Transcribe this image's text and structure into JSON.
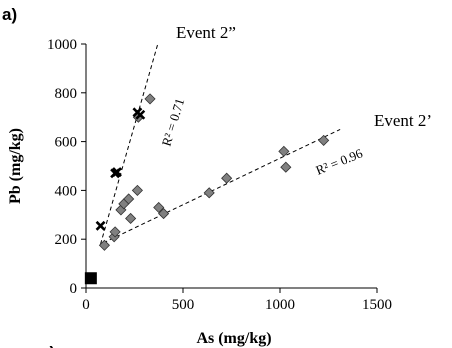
{
  "chart_data": {
    "type": "scatter",
    "panel_label": "a)",
    "next_panel_label_partial": "c)",
    "xlabel": "As (mg/kg)",
    "ylabel": "Pb (mg/kg)",
    "xlim": [
      0,
      1500
    ],
    "ylim": [
      0,
      1000
    ],
    "x_ticks": [
      0,
      500,
      1000,
      1500
    ],
    "y_ticks": [
      0,
      200,
      400,
      600,
      800,
      1000
    ],
    "grid": false,
    "series": [
      {
        "marker": "diamond",
        "color": "#808080",
        "points": [
          {
            "x": 95,
            "y": 175
          },
          {
            "x": 145,
            "y": 210
          },
          {
            "x": 150,
            "y": 230
          },
          {
            "x": 180,
            "y": 320
          },
          {
            "x": 195,
            "y": 345
          },
          {
            "x": 220,
            "y": 365
          },
          {
            "x": 230,
            "y": 285
          },
          {
            "x": 265,
            "y": 400
          },
          {
            "x": 270,
            "y": 700
          },
          {
            "x": 330,
            "y": 775
          },
          {
            "x": 375,
            "y": 330
          },
          {
            "x": 400,
            "y": 305
          },
          {
            "x": 635,
            "y": 390
          },
          {
            "x": 725,
            "y": 450
          },
          {
            "x": 1020,
            "y": 560
          },
          {
            "x": 1030,
            "y": 495
          },
          {
            "x": 1225,
            "y": 605
          }
        ]
      },
      {
        "marker": "x",
        "color": "#000000",
        "points": [
          {
            "x": 75,
            "y": 255
          },
          {
            "x": 150,
            "y": 470
          },
          {
            "x": 160,
            "y": 475
          },
          {
            "x": 265,
            "y": 720
          },
          {
            "x": 280,
            "y": 710
          }
        ]
      },
      {
        "marker": "square",
        "color": "#000000",
        "points": [
          {
            "x": 25,
            "y": 40
          }
        ]
      }
    ],
    "trendlines": [
      {
        "label": "Event 2”",
        "r2_text": "R² = 0.71",
        "x": [
          75,
          370
        ],
        "y": [
          180,
          1000
        ]
      },
      {
        "label": "Event 2’",
        "r2_text": "R² = 0.96",
        "x": [
          90,
          1310
        ],
        "y": [
          185,
          650
        ]
      }
    ]
  }
}
